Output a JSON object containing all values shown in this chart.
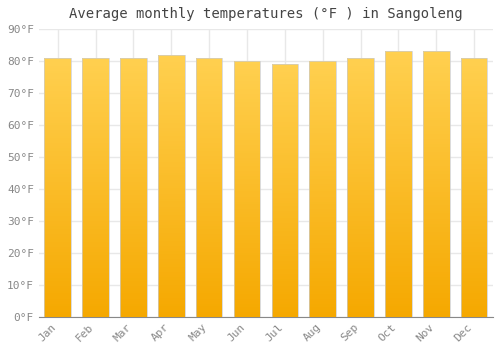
{
  "title": "Average monthly temperatures (°F ) in Sangoleng",
  "months": [
    "Jan",
    "Feb",
    "Mar",
    "Apr",
    "May",
    "Jun",
    "Jul",
    "Aug",
    "Sep",
    "Oct",
    "Nov",
    "Dec"
  ],
  "values": [
    81,
    81,
    81,
    82,
    81,
    80,
    79,
    80,
    81,
    83,
    83,
    81
  ],
  "bar_color_light": "#FFD050",
  "bar_color_dark": "#F5A800",
  "ylim": [
    0,
    90
  ],
  "yticks": [
    0,
    10,
    20,
    30,
    40,
    50,
    60,
    70,
    80,
    90
  ],
  "ytick_labels": [
    "0°F",
    "10°F",
    "20°F",
    "30°F",
    "40°F",
    "50°F",
    "60°F",
    "70°F",
    "80°F",
    "90°F"
  ],
  "background_color": "#ffffff",
  "grid_color": "#e8e8e8",
  "bar_edge_color": "#cccccc",
  "title_fontsize": 10,
  "tick_fontsize": 8,
  "tick_color": "#888888"
}
